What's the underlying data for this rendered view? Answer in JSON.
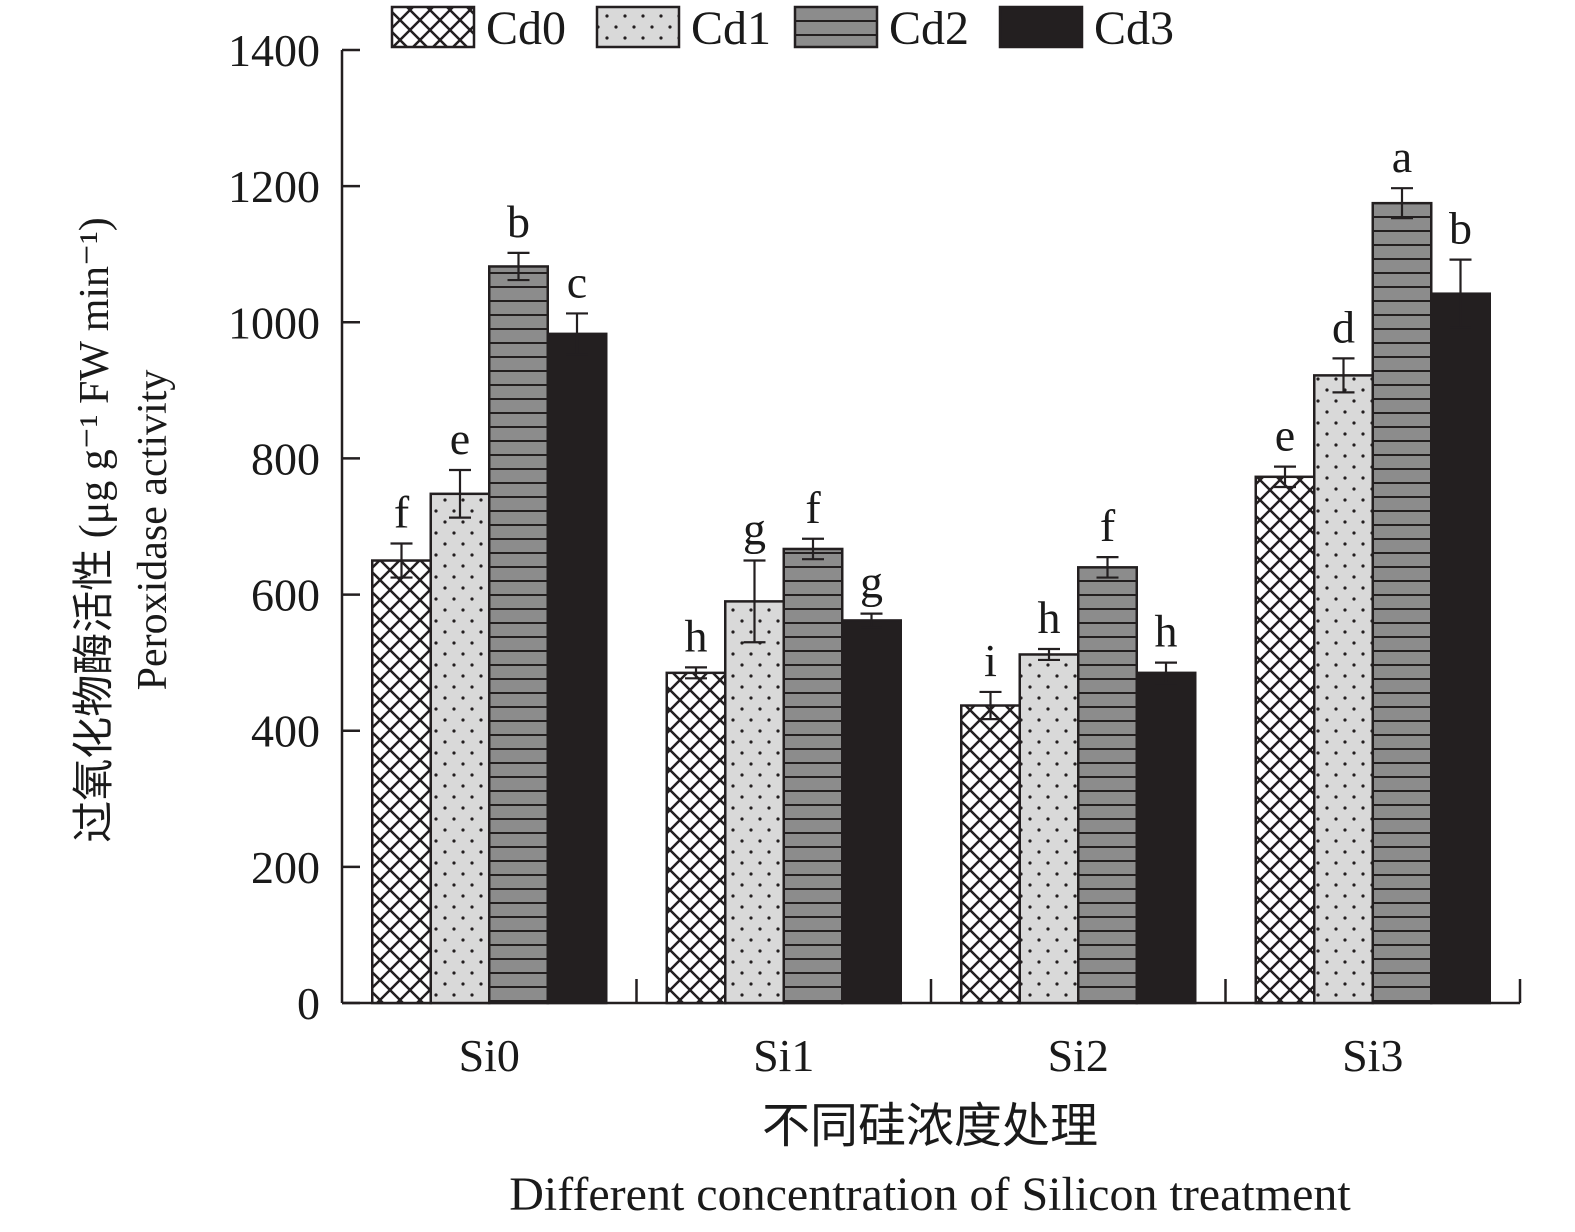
{
  "chart_data": {
    "type": "bar",
    "title": "",
    "ylabel_cn": "过氧化物酶活性 (μg g⁻¹ FW min⁻¹)",
    "ylabel_en": "Peroxidase activity",
    "xlabel_cn": "不同硅浓度处理",
    "xlabel_en": "Different concentration of Silicon treatment",
    "ylim": [
      0,
      1400
    ],
    "yticks": [
      "0",
      "200",
      "400",
      "600",
      "800",
      "1000",
      "1200",
      "1400"
    ],
    "categories": [
      "Si0",
      "Si1",
      "Si2",
      "Si3"
    ],
    "legend_position": "top",
    "series": [
      {
        "name": "Cd0",
        "pattern": "crosshatch",
        "color": "#ffffff",
        "values": [
          650,
          485,
          437,
          773
        ],
        "errors": [
          25,
          8,
          20,
          15
        ],
        "letters": [
          "f",
          "h",
          "i",
          "e"
        ]
      },
      {
        "name": "Cd1",
        "pattern": "dots",
        "color": "#d9d9d9",
        "values": [
          748,
          590,
          512,
          922
        ],
        "errors": [
          35,
          60,
          8,
          25
        ],
        "letters": [
          "e",
          "g",
          "h",
          "d"
        ]
      },
      {
        "name": "Cd2",
        "pattern": "horizontal-lines",
        "color": "#8c8c8c",
        "values": [
          1082,
          667,
          640,
          1175
        ],
        "errors": [
          20,
          15,
          15,
          22
        ],
        "letters": [
          "b",
          "f",
          "f",
          "a"
        ]
      },
      {
        "name": "Cd3",
        "pattern": "solid",
        "color": "#231f20",
        "values": [
          983,
          562,
          485,
          1042
        ],
        "errors": [
          30,
          10,
          15,
          50
        ],
        "letters": [
          "c",
          "g",
          "h",
          "b"
        ]
      }
    ]
  }
}
